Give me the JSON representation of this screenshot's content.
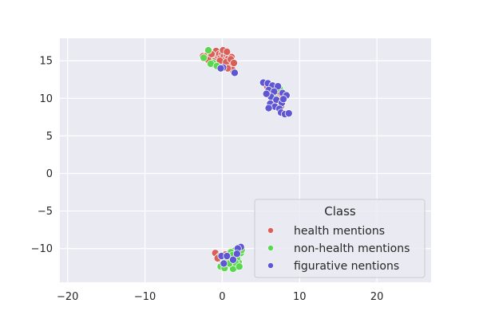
{
  "chart_data": {
    "type": "scatter",
    "title": "",
    "xlabel": "",
    "ylabel": "",
    "xlim": [
      -21,
      27
    ],
    "ylim": [
      -14.5,
      18
    ],
    "xticks": [
      -20,
      -10,
      0,
      10,
      20
    ],
    "yticks": [
      -10,
      -5,
      0,
      5,
      10,
      15
    ],
    "xtick_labels": [
      "−20",
      "−10",
      "0",
      "10",
      "20"
    ],
    "ytick_labels": [
      "−10",
      "−5",
      "0",
      "5",
      "10",
      "15"
    ],
    "grid": true,
    "background": "#eaeaf2",
    "legend": {
      "title": "Class",
      "position": "lower-right",
      "entries": [
        "health mentions",
        "non-health mentions",
        "figurative nentions"
      ]
    },
    "series": [
      {
        "name": "health mentions",
        "color": "#db5f57",
        "points": [
          [
            -2.5,
            15.6
          ],
          [
            -2.2,
            15.3
          ],
          [
            -1.9,
            15.8
          ],
          [
            -1.6,
            15.5
          ],
          [
            -1.3,
            16.1
          ],
          [
            -1.0,
            15.7
          ],
          [
            -0.8,
            16.3
          ],
          [
            -0.6,
            15.2
          ],
          [
            -0.4,
            15.9
          ],
          [
            -0.2,
            15.4
          ],
          [
            0.0,
            16.0
          ],
          [
            0.2,
            15.6
          ],
          [
            0.4,
            15.1
          ],
          [
            0.6,
            15.8
          ],
          [
            0.8,
            15.3
          ],
          [
            1.0,
            14.9
          ],
          [
            1.2,
            15.5
          ],
          [
            -1.1,
            14.9
          ],
          [
            -0.5,
            14.6
          ],
          [
            0.3,
            14.5
          ],
          [
            0.9,
            14.2
          ],
          [
            1.3,
            13.8
          ],
          [
            -1.8,
            15.1
          ],
          [
            0.1,
            16.4
          ],
          [
            0.6,
            16.2
          ],
          [
            -0.3,
            15.0
          ],
          [
            0.5,
            14.8
          ],
          [
            1.1,
            15.2
          ],
          [
            -1.4,
            15.9
          ],
          [
            0.7,
            14.0
          ],
          [
            -0.9,
            14.4
          ],
          [
            1.5,
            14.7
          ],
          [
            6.2,
            11.8
          ],
          [
            6.8,
            11.4
          ],
          [
            7.3,
            11.0
          ],
          [
            7.5,
            10.5
          ],
          [
            6.9,
            10.1
          ],
          [
            6.5,
            9.6
          ],
          [
            7.1,
            9.2
          ],
          [
            7.6,
            8.9
          ],
          [
            6.4,
            10.8
          ],
          [
            5.8,
            11.6
          ],
          [
            -0.9,
            -10.6
          ],
          [
            -0.3,
            -11.0
          ],
          [
            0.4,
            -10.8
          ],
          [
            1.1,
            -11.2
          ],
          [
            0.0,
            -11.6
          ],
          [
            -0.6,
            -11.3
          ]
        ]
      },
      {
        "name": "non-health mentions",
        "color": "#59d84f",
        "points": [
          [
            -1.8,
            16.4
          ],
          [
            -1.2,
            14.7
          ],
          [
            -1.5,
            14.6
          ],
          [
            -2.4,
            15.4
          ],
          [
            -0.7,
            14.3
          ],
          [
            6.4,
            9.4
          ],
          [
            6.9,
            9.9
          ],
          [
            7.4,
            11.3
          ],
          [
            6.1,
            9.0
          ],
          [
            7.8,
            9.6
          ],
          [
            6.6,
            10.4
          ],
          [
            0.5,
            -12.2
          ],
          [
            1.0,
            -11.6
          ],
          [
            1.5,
            -11.0
          ],
          [
            2.0,
            -10.5
          ],
          [
            2.3,
            -10.1
          ],
          [
            1.8,
            -12.5
          ],
          [
            1.2,
            -12.3
          ],
          [
            0.2,
            -11.9
          ],
          [
            0.8,
            -10.9
          ],
          [
            1.6,
            -10.3
          ],
          [
            2.1,
            -11.8
          ],
          [
            -0.2,
            -12.4
          ],
          [
            1.4,
            -12.7
          ],
          [
            2.4,
            -10.6
          ],
          [
            0.6,
            -11.4
          ],
          [
            1.9,
            -11.3
          ],
          [
            1.1,
            -10.5
          ],
          [
            2.5,
            -10.2
          ],
          [
            0.3,
            -12.6
          ],
          [
            1.7,
            -11.9
          ],
          [
            0.9,
            -12.0
          ],
          [
            2.2,
            -12.4
          ],
          [
            1.3,
            -10.9
          ]
        ]
      },
      {
        "name": "figurative nentions",
        "color": "#5f56d4",
        "points": [
          [
            0.1,
            14.1
          ],
          [
            -0.2,
            14.0
          ],
          [
            1.6,
            13.4
          ],
          [
            5.3,
            12.1
          ],
          [
            5.9,
            12.0
          ],
          [
            6.5,
            11.7
          ],
          [
            7.2,
            11.6
          ],
          [
            6.0,
            11.1
          ],
          [
            6.7,
            10.9
          ],
          [
            7.8,
            10.7
          ],
          [
            8.3,
            10.4
          ],
          [
            6.3,
            10.2
          ],
          [
            7.0,
            9.8
          ],
          [
            7.7,
            9.4
          ],
          [
            6.2,
            9.3
          ],
          [
            6.8,
            8.9
          ],
          [
            7.4,
            8.6
          ],
          [
            7.6,
            8.1
          ],
          [
            8.1,
            7.9
          ],
          [
            8.6,
            8.0
          ],
          [
            6.0,
            8.7
          ],
          [
            5.7,
            10.6
          ],
          [
            7.9,
            9.9
          ],
          [
            2.4,
            -9.8
          ],
          [
            2.0,
            -10.0
          ],
          [
            -0.1,
            -11.0
          ],
          [
            0.6,
            -11.0
          ],
          [
            1.4,
            -11.5
          ],
          [
            0.2,
            -12.0
          ],
          [
            1.9,
            -10.7
          ]
        ]
      }
    ]
  }
}
